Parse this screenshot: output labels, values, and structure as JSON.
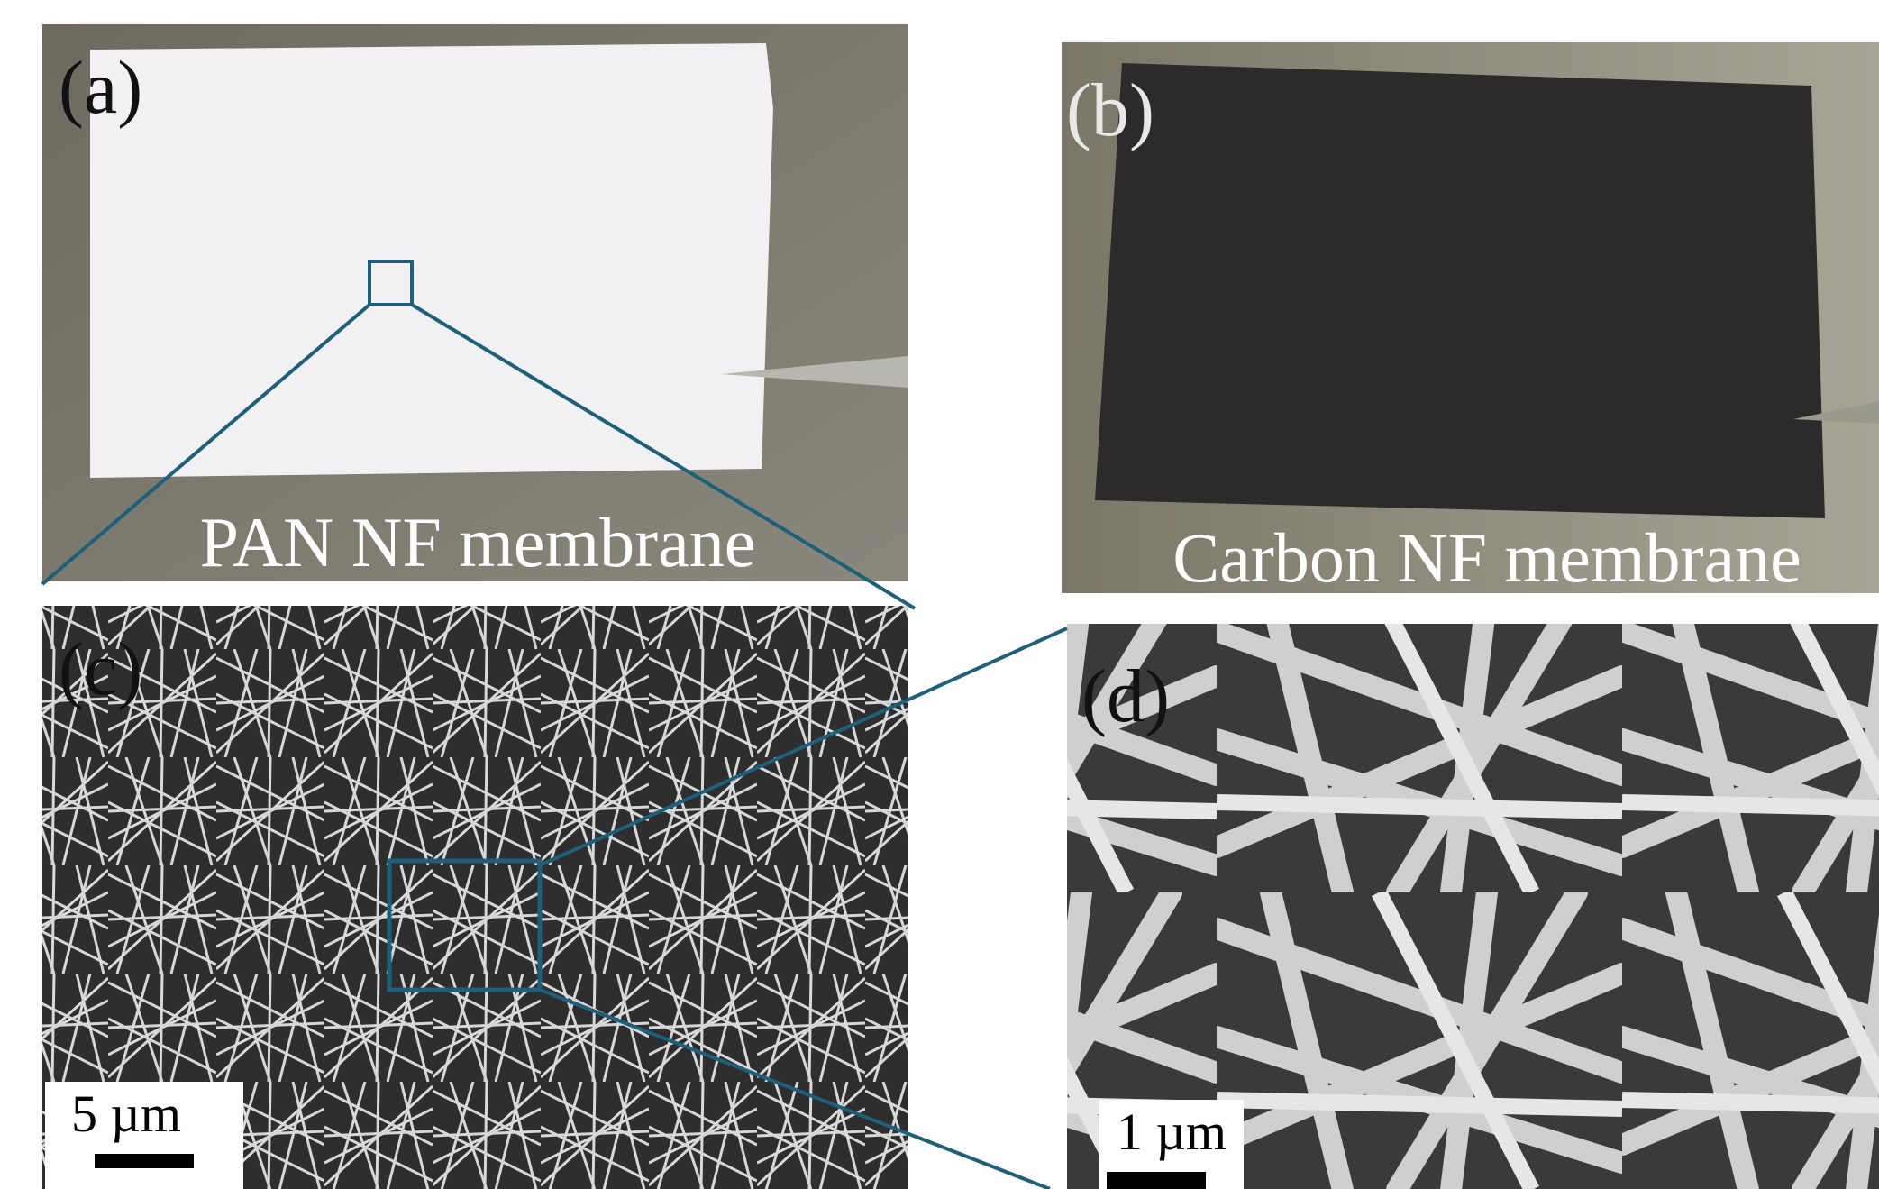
{
  "panels": [
    {
      "label": "(a)",
      "caption": "PAN NF membrane"
    },
    {
      "label": "(b)",
      "caption": "Carbon NF membrane"
    },
    {
      "label": "(c)",
      "scale_bar": "5 µm"
    },
    {
      "label": "(d)",
      "scale_bar": "1 µm"
    }
  ]
}
